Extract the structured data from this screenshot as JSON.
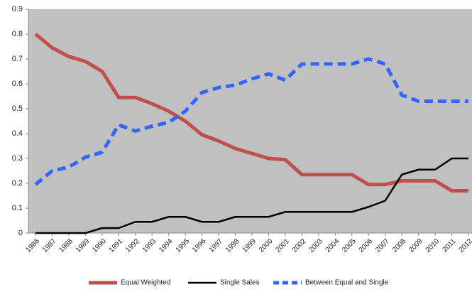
{
  "chart_data": {
    "type": "line",
    "categories": [
      "1986",
      "1987",
      "1988",
      "1989",
      "1990",
      "1991",
      "1992",
      "1993",
      "1994",
      "1995",
      "1996",
      "1997",
      "1998",
      "1999",
      "2000",
      "2001",
      "2002",
      "2003",
      "2004",
      "2005",
      "2006",
      "2007",
      "2008",
      "2009",
      "2010",
      "2011",
      "2012"
    ],
    "series": [
      {
        "name": "Equal Weighted",
        "color": "#c0504d",
        "dash": false,
        "width": 5,
        "values": [
          0.8,
          0.745,
          0.71,
          0.69,
          0.65,
          0.545,
          0.545,
          0.52,
          0.49,
          0.45,
          0.395,
          0.37,
          0.34,
          0.32,
          0.3,
          0.295,
          0.235,
          0.235,
          0.235,
          0.235,
          0.195,
          0.195,
          0.21,
          0.21,
          0.21,
          0.17,
          0.17
        ]
      },
      {
        "name": "Single Sales",
        "color": "#000000",
        "dash": false,
        "width": 2.5,
        "values": [
          0,
          0,
          0,
          0,
          0.02,
          0.02,
          0.045,
          0.045,
          0.065,
          0.065,
          0.045,
          0.045,
          0.065,
          0.065,
          0.065,
          0.085,
          0.085,
          0.085,
          0.085,
          0.085,
          0.105,
          0.13,
          0.235,
          0.255,
          0.255,
          0.3,
          0.3
        ]
      },
      {
        "name": "Between Equal and Single",
        "color": "#3366ff",
        "dash": true,
        "width": 5,
        "values": [
          0.195,
          0.25,
          0.265,
          0.305,
          0.325,
          0.435,
          0.41,
          0.43,
          0.445,
          0.49,
          0.565,
          0.585,
          0.595,
          0.62,
          0.64,
          0.615,
          0.68,
          0.68,
          0.68,
          0.68,
          0.7,
          0.68,
          0.555,
          0.53,
          0.53,
          0.53,
          0.53
        ]
      }
    ],
    "ylim": [
      0,
      0.9
    ],
    "yticks": [
      0,
      0.1,
      0.2,
      0.3,
      0.4,
      0.5,
      0.6,
      0.7,
      0.8,
      0.9
    ],
    "background": "#c0c0c0",
    "legend": "bottom"
  }
}
